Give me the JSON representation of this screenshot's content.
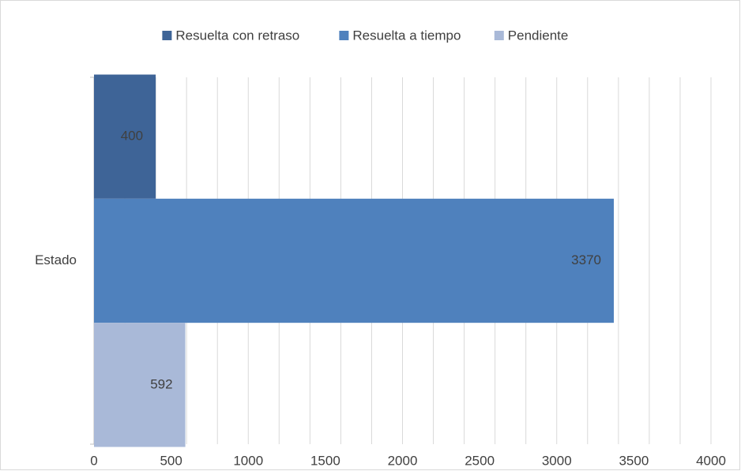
{
  "chart_data": {
    "type": "hbar",
    "categories": [
      "Estado"
    ],
    "series": [
      {
        "name": "Resuelta con retraso",
        "color": "#3e6497",
        "values": [
          400
        ]
      },
      {
        "name": "Resuelta a tiempo",
        "color": "#4f81bd",
        "values": [
          3370
        ]
      },
      {
        "name": "Pendiente",
        "color": "#a9b9d8",
        "values": [
          592
        ]
      }
    ],
    "xlim": [
      0,
      4000
    ],
    "xticks": [
      0,
      500,
      1000,
      1500,
      2000,
      2500,
      3000,
      3500,
      4000
    ],
    "minor_xticks": [
      0,
      200,
      400,
      600,
      800,
      1000,
      1200,
      1400,
      1600,
      1800,
      2000,
      2200,
      2400,
      2600,
      2800,
      3000,
      3200,
      3400,
      3600,
      3800,
      4000
    ],
    "grid": true,
    "legend": "top"
  }
}
